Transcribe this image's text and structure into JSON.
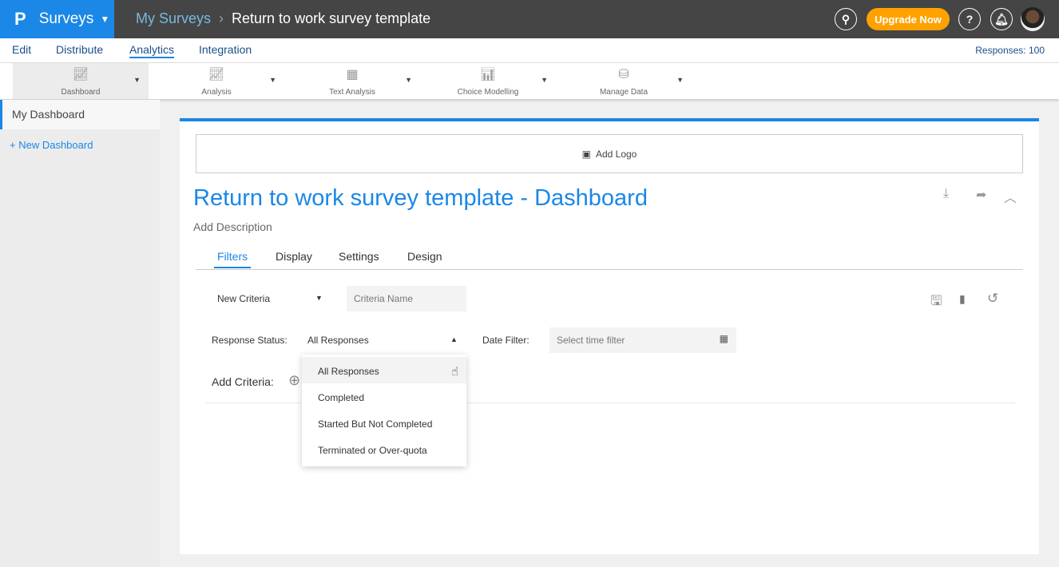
{
  "topbar": {
    "brand": "Surveys",
    "breadcrumb": [
      "My Surveys",
      "Return to work survey template"
    ],
    "upgrade": "Upgrade Now",
    "help": "?"
  },
  "nav": {
    "items": [
      "Edit",
      "Distribute",
      "Analytics",
      "Integration"
    ],
    "active": "Analytics",
    "responses": "Responses: 100"
  },
  "toolbar": {
    "items": [
      {
        "label": "Dashboard",
        "icon": "line-chart-icon"
      },
      {
        "label": "Analysis",
        "icon": "analysis-chart-icon"
      },
      {
        "label": "Text Analysis",
        "icon": "text-analysis-icon"
      },
      {
        "label": "Choice Modelling",
        "icon": "choice-modelling-icon"
      },
      {
        "label": "Manage Data",
        "icon": "database-icon"
      }
    ]
  },
  "sidebar": {
    "active": "My Dashboard",
    "new": "+ New Dashboard"
  },
  "dashboard": {
    "add_logo": "Add Logo",
    "title": "Return to work survey template - Dashboard",
    "description": "Add Description",
    "tabs": [
      "Filters",
      "Display",
      "Settings",
      "Design"
    ],
    "filters": {
      "criteria_select": "New Criteria",
      "criteria_name_placeholder": "Criteria Name",
      "response_status_label": "Response Status:",
      "response_status_value": "All Responses",
      "date_filter_label": "Date Filter:",
      "date_filter_placeholder": "Select time filter",
      "add_criteria": "Add Criteria:",
      "options": [
        "All Responses",
        "Completed",
        "Started But Not Completed",
        "Terminated or Over-quota"
      ]
    }
  },
  "colors": {
    "accent": "#1b87e6",
    "upgrade": "#ffa200",
    "topbar": "#454545"
  }
}
